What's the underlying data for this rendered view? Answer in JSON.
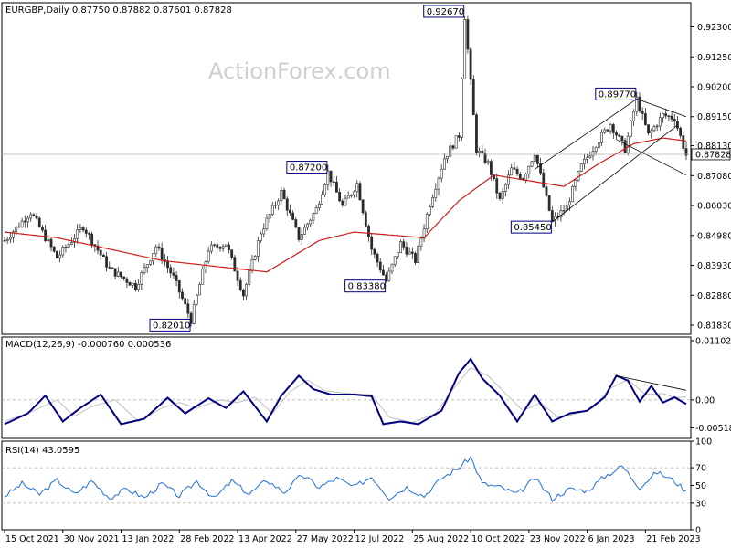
{
  "chart_data": [
    {
      "type": "candlestick",
      "header": "EURGBP,Daily  0.87750 0.87882 0.87601 0.87828",
      "watermark": "ActionForex.com",
      "ylim": [
        0.8151,
        0.9315
      ],
      "y_ticks": [
        "0.92300",
        "0.91250",
        "0.90200",
        "0.89150",
        "0.88130",
        "0.87080",
        "0.86030",
        "0.84980",
        "0.83930",
        "0.82880",
        "0.81830"
      ],
      "y_tick_values": [
        0.923,
        0.9125,
        0.902,
        0.8915,
        0.8813,
        0.8708,
        0.8603,
        0.8498,
        0.8393,
        0.8288,
        0.8183
      ],
      "last_price": {
        "label": "0.87828",
        "value": 0.87828
      },
      "annotations": [
        {
          "label": "0.82010",
          "value": 0.8201,
          "bar": 64
        },
        {
          "label": "0.87200",
          "value": 0.872,
          "bar": 111
        },
        {
          "label": "0.83380",
          "value": 0.8338,
          "bar": 131
        },
        {
          "label": "0.92670",
          "value": 0.9267,
          "bar": 158
        },
        {
          "label": "0.85450",
          "value": 0.8545,
          "bar": 188
        },
        {
          "label": "0.89770",
          "value": 0.8977,
          "bar": 217
        }
      ],
      "key_points": [
        [
          0,
          0.848
        ],
        [
          9,
          0.858
        ],
        [
          18,
          0.842
        ],
        [
          27,
          0.853
        ],
        [
          36,
          0.838
        ],
        [
          45,
          0.832
        ],
        [
          52,
          0.846
        ],
        [
          58,
          0.835
        ],
        [
          64,
          0.8201
        ],
        [
          70,
          0.845
        ],
        [
          76,
          0.847
        ],
        [
          82,
          0.829
        ],
        [
          88,
          0.851
        ],
        [
          95,
          0.865
        ],
        [
          101,
          0.849
        ],
        [
          107,
          0.859
        ],
        [
          111,
          0.872
        ],
        [
          116,
          0.86
        ],
        [
          121,
          0.868
        ],
        [
          126,
          0.845
        ],
        [
          131,
          0.8338
        ],
        [
          136,
          0.847
        ],
        [
          141,
          0.841
        ],
        [
          146,
          0.861
        ],
        [
          151,
          0.877
        ],
        [
          156,
          0.885
        ],
        [
          158,
          0.9267
        ],
        [
          162,
          0.88
        ],
        [
          166,
          0.875
        ],
        [
          170,
          0.862
        ],
        [
          174,
          0.873
        ],
        [
          178,
          0.87
        ],
        [
          182,
          0.879
        ],
        [
          188,
          0.8545
        ],
        [
          193,
          0.86
        ],
        [
          198,
          0.874
        ],
        [
          203,
          0.882
        ],
        [
          208,
          0.889
        ],
        [
          213,
          0.88
        ],
        [
          217,
          0.8977
        ],
        [
          221,
          0.885
        ],
        [
          226,
          0.892
        ],
        [
          230,
          0.891
        ],
        [
          234,
          0.878
        ]
      ],
      "n_bars": 235,
      "ma_points": [
        [
          0,
          0.851
        ],
        [
          18,
          0.849
        ],
        [
          36,
          0.845
        ],
        [
          54,
          0.841
        ],
        [
          72,
          0.839
        ],
        [
          90,
          0.837
        ],
        [
          108,
          0.848
        ],
        [
          120,
          0.851
        ],
        [
          132,
          0.85
        ],
        [
          144,
          0.849
        ],
        [
          156,
          0.862
        ],
        [
          168,
          0.871
        ],
        [
          180,
          0.869
        ],
        [
          192,
          0.867
        ],
        [
          204,
          0.875
        ],
        [
          216,
          0.882
        ],
        [
          226,
          0.884
        ],
        [
          234,
          0.883
        ]
      ],
      "trend_lines": [
        {
          "from": [
            188,
            0.8545
          ],
          "to": [
            231,
            0.8885
          ]
        },
        {
          "from": [
            182,
            0.873
          ],
          "to": [
            217,
            0.8977
          ]
        },
        {
          "from": [
            217,
            0.8977
          ],
          "to": [
            234,
            0.8915
          ]
        },
        {
          "from": [
            210,
            0.8835
          ],
          "to": [
            234,
            0.871
          ]
        }
      ]
    },
    {
      "type": "line",
      "header": "MACD(12,26,9) -0.000760 0.000536",
      "ylim": [
        -0.00715,
        0.0117
      ],
      "y_ticks": [
        "0.011023",
        "0.00",
        "-0.005182"
      ],
      "y_tick_values": [
        0.011023,
        0.0,
        -0.005182
      ],
      "zero_label": "0.00",
      "macd_points": [
        [
          0,
          -0.0045
        ],
        [
          8,
          -0.0025
        ],
        [
          14,
          0.0008
        ],
        [
          20,
          -0.004
        ],
        [
          26,
          -0.0015
        ],
        [
          33,
          0.001
        ],
        [
          40,
          -0.0045
        ],
        [
          48,
          -0.0035
        ],
        [
          56,
          0.0004
        ],
        [
          62,
          -0.0025
        ],
        [
          70,
          0.0003
        ],
        [
          76,
          -0.0015
        ],
        [
          82,
          0.0016
        ],
        [
          90,
          -0.004
        ],
        [
          95,
          0.0008
        ],
        [
          101,
          0.0045
        ],
        [
          106,
          0.002
        ],
        [
          112,
          0.001
        ],
        [
          120,
          0.001
        ],
        [
          126,
          0.0007
        ],
        [
          130,
          -0.0045
        ],
        [
          136,
          -0.004
        ],
        [
          142,
          -0.0045
        ],
        [
          150,
          -0.002
        ],
        [
          156,
          0.005
        ],
        [
          160,
          0.0076
        ],
        [
          164,
          0.004
        ],
        [
          170,
          0.0008
        ],
        [
          176,
          -0.004
        ],
        [
          182,
          0.001
        ],
        [
          188,
          -0.004
        ],
        [
          194,
          -0.0025
        ],
        [
          200,
          -0.002
        ],
        [
          206,
          0.0005
        ],
        [
          210,
          0.0045
        ],
        [
          214,
          0.0036
        ],
        [
          218,
          -0.0003
        ],
        [
          222,
          0.0026
        ],
        [
          226,
          -0.0005
        ],
        [
          230,
          0.0005
        ],
        [
          234,
          -0.00076
        ]
      ],
      "signal_points": [
        [
          0,
          -0.004
        ],
        [
          10,
          -0.002
        ],
        [
          18,
          0.0
        ],
        [
          24,
          -0.003
        ],
        [
          30,
          -0.0012
        ],
        [
          38,
          0.0
        ],
        [
          46,
          -0.004
        ],
        [
          54,
          -0.0015
        ],
        [
          60,
          -0.0005
        ],
        [
          66,
          -0.0015
        ],
        [
          74,
          0.0
        ],
        [
          80,
          -0.0005
        ],
        [
          86,
          0.0005
        ],
        [
          92,
          -0.0025
        ],
        [
          98,
          0.0015
        ],
        [
          104,
          0.0037
        ],
        [
          110,
          0.0017
        ],
        [
          118,
          0.0012
        ],
        [
          126,
          0.001
        ],
        [
          132,
          -0.0032
        ],
        [
          140,
          -0.0042
        ],
        [
          148,
          -0.0025
        ],
        [
          154,
          0.002
        ],
        [
          160,
          0.006
        ],
        [
          166,
          0.0045
        ],
        [
          172,
          0.0012
        ],
        [
          178,
          -0.002
        ],
        [
          184,
          -0.0005
        ],
        [
          190,
          -0.0032
        ],
        [
          196,
          -0.0026
        ],
        [
          202,
          -0.0015
        ],
        [
          208,
          0.0022
        ],
        [
          214,
          0.0038
        ],
        [
          220,
          0.001
        ],
        [
          226,
          0.0012
        ],
        [
          230,
          0.0004
        ],
        [
          234,
          0.000536
        ]
      ],
      "divergence_line": {
        "from": [
          210,
          0.0045
        ],
        "to": [
          234,
          0.0018
        ]
      }
    },
    {
      "type": "line",
      "header": "RSI(14) 43.0595",
      "ylim": [
        0,
        100
      ],
      "y_ticks": [
        "100",
        "70",
        "50",
        "30",
        "0"
      ],
      "y_tick_values": [
        100,
        70,
        50,
        30,
        0
      ],
      "levels": [
        70,
        30
      ],
      "rsi_points": [
        [
          0,
          38
        ],
        [
          6,
          52
        ],
        [
          12,
          40
        ],
        [
          18,
          56
        ],
        [
          24,
          40
        ],
        [
          30,
          55
        ],
        [
          36,
          36
        ],
        [
          42,
          46
        ],
        [
          48,
          36
        ],
        [
          54,
          52
        ],
        [
          60,
          38
        ],
        [
          66,
          55
        ],
        [
          72,
          35
        ],
        [
          78,
          55
        ],
        [
          84,
          40
        ],
        [
          90,
          56
        ],
        [
          96,
          42
        ],
        [
          102,
          62
        ],
        [
          108,
          48
        ],
        [
          114,
          58
        ],
        [
          120,
          48
        ],
        [
          126,
          60
        ],
        [
          132,
          36
        ],
        [
          138,
          48
        ],
        [
          144,
          38
        ],
        [
          150,
          58
        ],
        [
          156,
          70
        ],
        [
          160,
          82
        ],
        [
          164,
          52
        ],
        [
          170,
          48
        ],
        [
          176,
          40
        ],
        [
          182,
          58
        ],
        [
          188,
          35
        ],
        [
          194,
          46
        ],
        [
          200,
          44
        ],
        [
          206,
          60
        ],
        [
          212,
          72
        ],
        [
          218,
          48
        ],
        [
          224,
          65
        ],
        [
          230,
          55
        ],
        [
          234,
          43.0595
        ]
      ]
    }
  ],
  "x_axis": {
    "labels": [
      "15 Oct 2021",
      "30 Nov 2021",
      "13 Jan 2022",
      "28 Feb 2022",
      "13 Apr 2022",
      "27 May 2022",
      "12 Jul 2022",
      "25 Aug 2022",
      "10 Oct 2022",
      "23 Nov 2022",
      "6 Jan 2023",
      "21 Feb 2023"
    ],
    "label_bars": [
      0,
      20,
      40,
      60,
      80,
      100,
      120,
      140,
      160,
      180,
      200,
      220
    ]
  },
  "colors": {
    "candle": "#2a2a2a",
    "ma": "#cc1c1c",
    "macd": "#000080",
    "signal": "#c0c0c0",
    "rsi": "#1e6fd9",
    "label_border": "#000080",
    "trend": "#000000"
  }
}
